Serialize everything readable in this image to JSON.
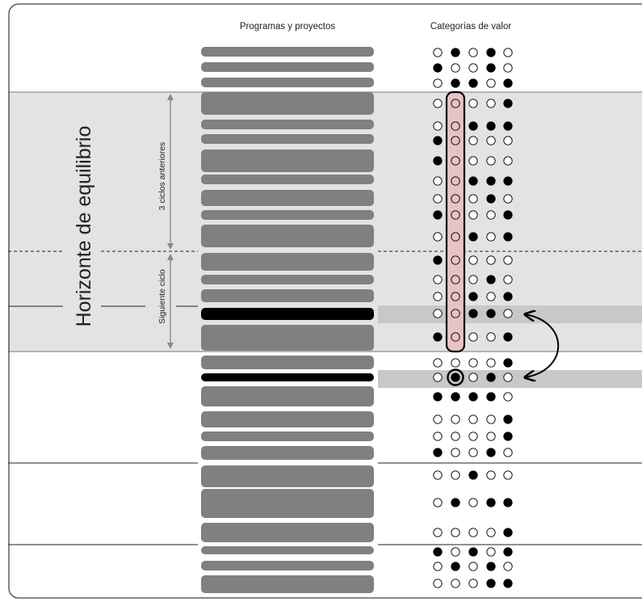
{
  "headers": {
    "programs": "Programas y proyectos",
    "categories": "Categorías de valor"
  },
  "labels": {
    "horizon": "Horizonte de equilibrio",
    "previous_cycles": "3 ciclos anteriores",
    "next_cycle": "Siguiente ciclo"
  },
  "colors": {
    "frame": "#444444",
    "bar": "#808080",
    "highlight_bar": "#000000",
    "band": "#e3e3e3",
    "band_border": "#b5b5b5",
    "swap_band": "#c8c8c8",
    "highlight_column": "#e8c3c3",
    "dot_filled": "#000000",
    "dot_empty": "#ffffff"
  },
  "rows": [
    {
      "dots": [
        0,
        1,
        0,
        1,
        0
      ]
    },
    {
      "dots": [
        1,
        0,
        0,
        1,
        0
      ]
    },
    {
      "dots": [
        0,
        1,
        1,
        0,
        1
      ]
    },
    {
      "dots": [
        0,
        0,
        0,
        0,
        1
      ]
    },
    {
      "dots": [
        0,
        0,
        1,
        1,
        1
      ]
    },
    {
      "dots": [
        1,
        0,
        0,
        0,
        0
      ]
    },
    {
      "dots": [
        1,
        0,
        0,
        0,
        0
      ]
    },
    {
      "dots": [
        0,
        0,
        1,
        1,
        1
      ]
    },
    {
      "dots": [
        0,
        0,
        0,
        1,
        0
      ]
    },
    {
      "dots": [
        1,
        0,
        0,
        0,
        1
      ]
    },
    {
      "dots": [
        0,
        0,
        1,
        0,
        1
      ]
    },
    {
      "dots": [
        1,
        0,
        0,
        0,
        0
      ]
    },
    {
      "dots": [
        0,
        0,
        0,
        1,
        0
      ]
    },
    {
      "dots": [
        0,
        0,
        1,
        0,
        1
      ]
    },
    {
      "dots": [
        0,
        0,
        1,
        1,
        0
      ],
      "highlight": true
    },
    {
      "dots": [
        1,
        0,
        0,
        0,
        1
      ]
    },
    {
      "dots": [
        0,
        0,
        0,
        0,
        1
      ]
    },
    {
      "dots": [
        0,
        1,
        0,
        1,
        0
      ],
      "highlight": true
    },
    {
      "dots": [
        1,
        1,
        1,
        1,
        0
      ]
    },
    {
      "dots": [
        0,
        0,
        0,
        0,
        1
      ]
    },
    {
      "dots": [
        0,
        0,
        0,
        0,
        1
      ]
    },
    {
      "dots": [
        1,
        0,
        0,
        1,
        0
      ]
    },
    {
      "dots": [
        0,
        0,
        1,
        0,
        0
      ]
    },
    {
      "dots": [
        0,
        1,
        0,
        1,
        1
      ]
    },
    {
      "dots": [
        0,
        0,
        0,
        0,
        1
      ]
    },
    {
      "dots": [
        1,
        0,
        1,
        0,
        1
      ]
    },
    {
      "dots": [
        0,
        1,
        0,
        1,
        0
      ]
    },
    {
      "dots": [
        0,
        0,
        0,
        1,
        1
      ]
    }
  ]
}
